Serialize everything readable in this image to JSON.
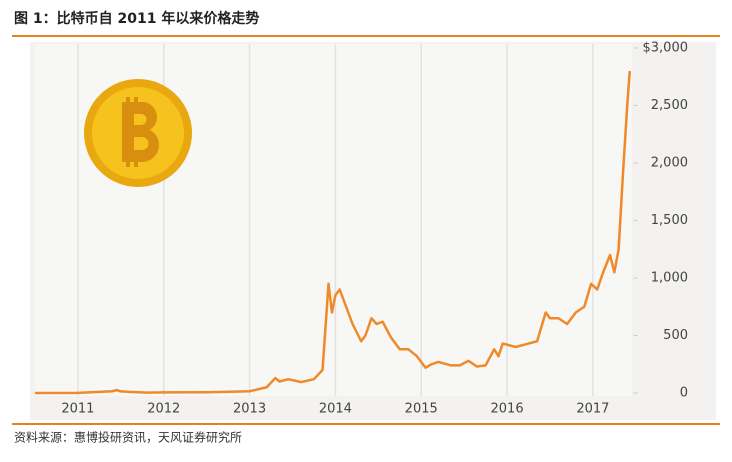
{
  "chart_data": {
    "type": "line",
    "title": "图 1：比特币自 2011 年以来价格走势",
    "source": "资料来源：惠博投研资讯，天风证券研究所",
    "x": [
      2010.5,
      2011.0,
      2011.4,
      2011.45,
      2011.5,
      2011.8,
      2012.0,
      2012.5,
      2012.9,
      2013.0,
      2013.2,
      2013.3,
      2013.35,
      2013.45,
      2013.6,
      2013.75,
      2013.85,
      2013.92,
      2013.96,
      2014.0,
      2014.05,
      2014.1,
      2014.2,
      2014.3,
      2014.35,
      2014.42,
      2014.48,
      2014.55,
      2014.65,
      2014.75,
      2014.85,
      2014.95,
      2015.05,
      2015.12,
      2015.2,
      2015.35,
      2015.45,
      2015.55,
      2015.65,
      2015.75,
      2015.85,
      2015.9,
      2015.95,
      2016.1,
      2016.2,
      2016.35,
      2016.45,
      2016.5,
      2016.6,
      2016.7,
      2016.8,
      2016.9,
      2016.98,
      2017.05,
      2017.12,
      2017.2,
      2017.25,
      2017.3,
      2017.35,
      2017.4,
      2017.43
    ],
    "series": [
      {
        "color": "#f0892a",
        "values": [
          0,
          1,
          15,
          25,
          14,
          3,
          5,
          7,
          13,
          15,
          50,
          130,
          100,
          120,
          95,
          120,
          200,
          950,
          700,
          850,
          900,
          800,
          600,
          450,
          500,
          650,
          600,
          620,
          480,
          380,
          380,
          320,
          220,
          250,
          270,
          240,
          240,
          280,
          230,
          240,
          380,
          320,
          430,
          400,
          420,
          450,
          700,
          650,
          650,
          600,
          700,
          750,
          950,
          900,
          1050,
          1200,
          1050,
          1250,
          1900,
          2500,
          2800
        ]
      }
    ],
    "xlim": [
      2010.5,
      2017.45
    ],
    "xticks": [
      2011,
      2012,
      2013,
      2014,
      2015,
      2016,
      2017
    ],
    "ylim": [
      0,
      3000
    ],
    "yticks": [
      0,
      500,
      {
        "value": 1000,
        "label": "1,000"
      },
      {
        "value": 1500,
        "label": "1,500"
      },
      {
        "value": 2000,
        "label": "2,000"
      },
      {
        "value": 2500,
        "label": "2,500"
      },
      {
        "value": 3000,
        "label": "$3,000"
      }
    ],
    "grid": true
  }
}
